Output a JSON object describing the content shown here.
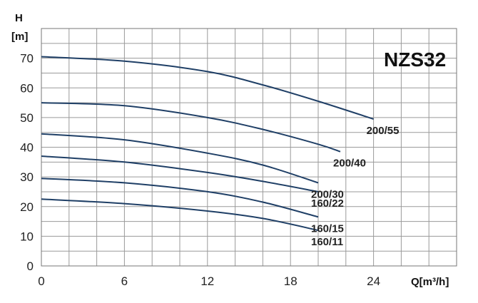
{
  "chart_data": {
    "type": "line",
    "title": "NZS32",
    "ylabel_h": "H",
    "ylabel_unit": "[m]",
    "xlabel": "Q[m³/h]",
    "xlim": [
      0,
      30
    ],
    "ylim": [
      0,
      80
    ],
    "xticks": [
      0,
      6,
      12,
      18,
      24
    ],
    "yticks": [
      0,
      10,
      20,
      30,
      40,
      50,
      60,
      70
    ],
    "x_grid_step": 2,
    "y_grid_step": 5,
    "grid": true,
    "series": [
      {
        "name": "200/55",
        "x": [
          0,
          6,
          12,
          16,
          20,
          24
        ],
        "y": [
          70.5,
          69,
          65.5,
          61,
          55.5,
          49.5
        ]
      },
      {
        "name": "200/40",
        "x": [
          0,
          6,
          12,
          16,
          20,
          21.6
        ],
        "y": [
          55,
          54,
          50,
          46,
          41,
          38.5
        ]
      },
      {
        "name": "200/30",
        "x": [
          0,
          6,
          12,
          16,
          20
        ],
        "y": [
          44.5,
          42.5,
          38,
          34,
          28
        ]
      },
      {
        "name": "160/22",
        "x": [
          0,
          6,
          12,
          16,
          20
        ],
        "y": [
          37,
          35,
          31.5,
          28.5,
          25
        ]
      },
      {
        "name": "160/15",
        "x": [
          0,
          6,
          12,
          16,
          20
        ],
        "y": [
          29.5,
          28,
          25,
          21.5,
          16.5
        ]
      },
      {
        "name": "160/11",
        "x": [
          0,
          6,
          12,
          16,
          20
        ],
        "y": [
          22.5,
          21,
          18.5,
          16,
          12
        ]
      }
    ]
  }
}
